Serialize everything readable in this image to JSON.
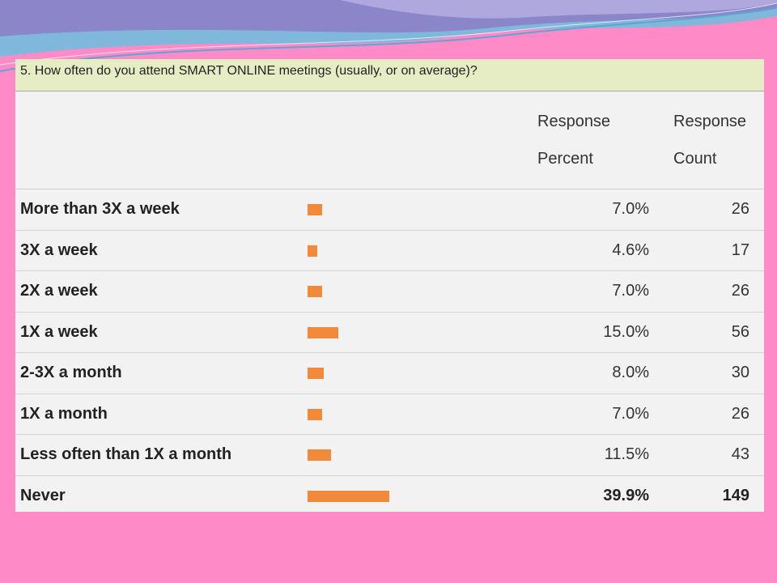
{
  "chart_data": {
    "type": "bar",
    "title": "5. How often do you attend SMART ONLINE meetings (usually, or on average)?",
    "column_headers": {
      "percent": [
        "Response",
        "Percent"
      ],
      "count": [
        "Response",
        "Count"
      ]
    },
    "categories": [
      "More than 3X a week",
      "3X a week",
      "2X a week",
      "1X a week",
      "2-3X a month",
      "1X a month",
      "Less often than 1X a month",
      "Never"
    ],
    "values": [
      7.0,
      4.6,
      7.0,
      15.0,
      8.0,
      7.0,
      11.5,
      39.9
    ],
    "percent_labels": [
      "7.0%",
      "4.6%",
      "7.0%",
      "15.0%",
      "8.0%",
      "7.0%",
      "11.5%",
      "39.9%"
    ],
    "counts": [
      "26",
      "17",
      "26",
      "56",
      "30",
      "26",
      "43",
      "149"
    ],
    "bar_color": "#f0893a"
  }
}
